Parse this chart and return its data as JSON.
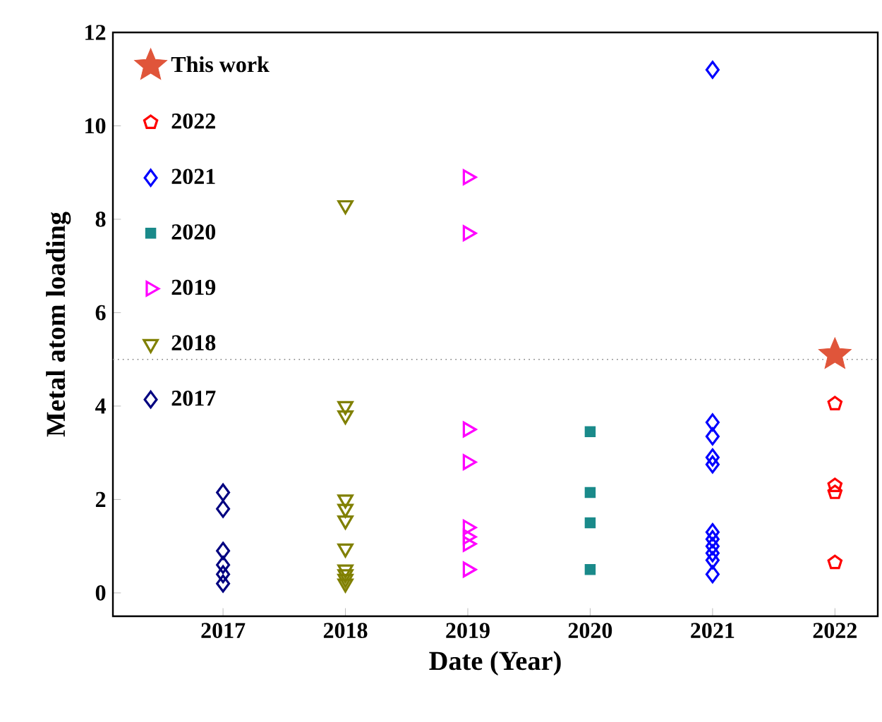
{
  "chart_data": {
    "type": "scatter",
    "xlabel": "Date (Year)",
    "ylabel": "Metal atom loading",
    "xlim": [
      2016.1,
      2022.35
    ],
    "xticks": [
      2017,
      2018,
      2019,
      2020,
      2021,
      2022
    ],
    "ylim": [
      -0.5,
      12
    ],
    "yticks": [
      0,
      2,
      4,
      6,
      8,
      10,
      12
    ],
    "grid": false,
    "legend": "top left",
    "ref_lines": [
      {
        "axis": "y",
        "value": 5,
        "color": "#808080",
        "line_style": "dotted"
      }
    ],
    "series": [
      {
        "name": "This work",
        "color": "#e0553a",
        "marker": "star",
        "x": [
          2022
        ],
        "values": [
          5.1
        ]
      },
      {
        "name": "2022",
        "color": "#ff0000",
        "x": [
          2022,
          2022,
          2022,
          2022
        ],
        "values": [
          4.05,
          2.3,
          2.15,
          0.65
        ]
      },
      {
        "name": "2021",
        "color": "#0000ff",
        "marker": "diamond",
        "x": [
          2021,
          2021,
          2021,
          2021,
          2021,
          2021,
          2021,
          2021,
          2021,
          2021,
          2021
        ],
        "values": [
          11.2,
          3.65,
          3.35,
          2.9,
          2.75,
          1.3,
          1.15,
          1.0,
          0.85,
          0.7,
          0.4
        ]
      },
      {
        "name": "2020",
        "color": "#1a8a8a",
        "marker": "square",
        "x": [
          2020,
          2020,
          2020,
          2020
        ],
        "values": [
          3.45,
          2.15,
          1.5,
          0.5
        ]
      },
      {
        "name": "2019",
        "color": "#ff00ff",
        "marker": "triangle-right",
        "x": [
          2019,
          2019,
          2019,
          2019,
          2019,
          2019,
          2019,
          2019
        ],
        "values": [
          8.9,
          7.7,
          3.5,
          2.8,
          1.4,
          1.2,
          1.05,
          0.5
        ]
      },
      {
        "name": "2018",
        "color": "#808000",
        "marker": "triangle-down",
        "x": [
          2018,
          2018,
          2018,
          2018,
          2018,
          2018,
          2018,
          2018,
          2018,
          2018,
          2018
        ],
        "values": [
          8.3,
          4.0,
          3.8,
          2.0,
          1.8,
          1.55,
          0.95,
          0.5,
          0.4,
          0.3,
          0.2
        ]
      },
      {
        "name": "2017",
        "color": "#000080",
        "marker": "diamond",
        "x": [
          2017,
          2017,
          2017,
          2017,
          2017,
          2017
        ],
        "values": [
          2.15,
          1.8,
          0.9,
          0.6,
          0.4,
          0.2
        ]
      }
    ]
  }
}
